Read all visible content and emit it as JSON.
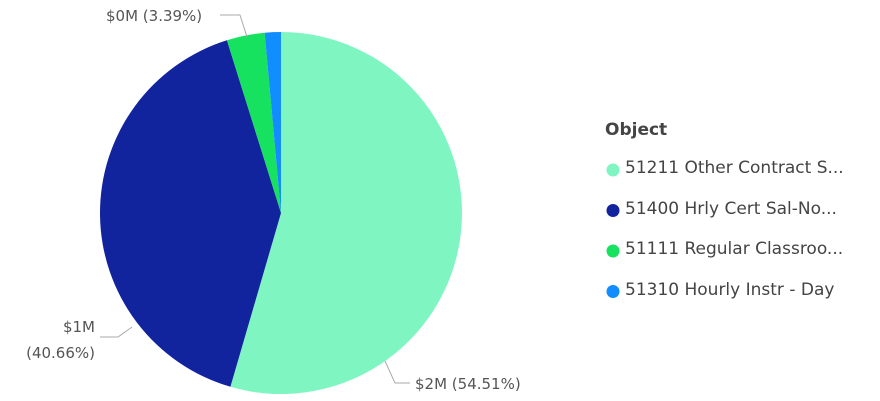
{
  "chart_data": {
    "type": "pie",
    "legend_title": "Object",
    "legend_position": "right",
    "categories": [
      "51211 Other Contract S...",
      "51400 Hrly Cert Sal-No...",
      "51111 Regular Classroo...",
      "51310 Hourly Instr - Day"
    ],
    "values": [
      54.51,
      40.66,
      3.39,
      1.44
    ],
    "value_labels": [
      "$2M (54.51%)",
      "$1M (40.66%)",
      "$0M (3.39%)",
      null
    ],
    "colors": [
      "#7ff6c2",
      "#12239e",
      "#17e25f",
      "#118dff"
    ]
  }
}
